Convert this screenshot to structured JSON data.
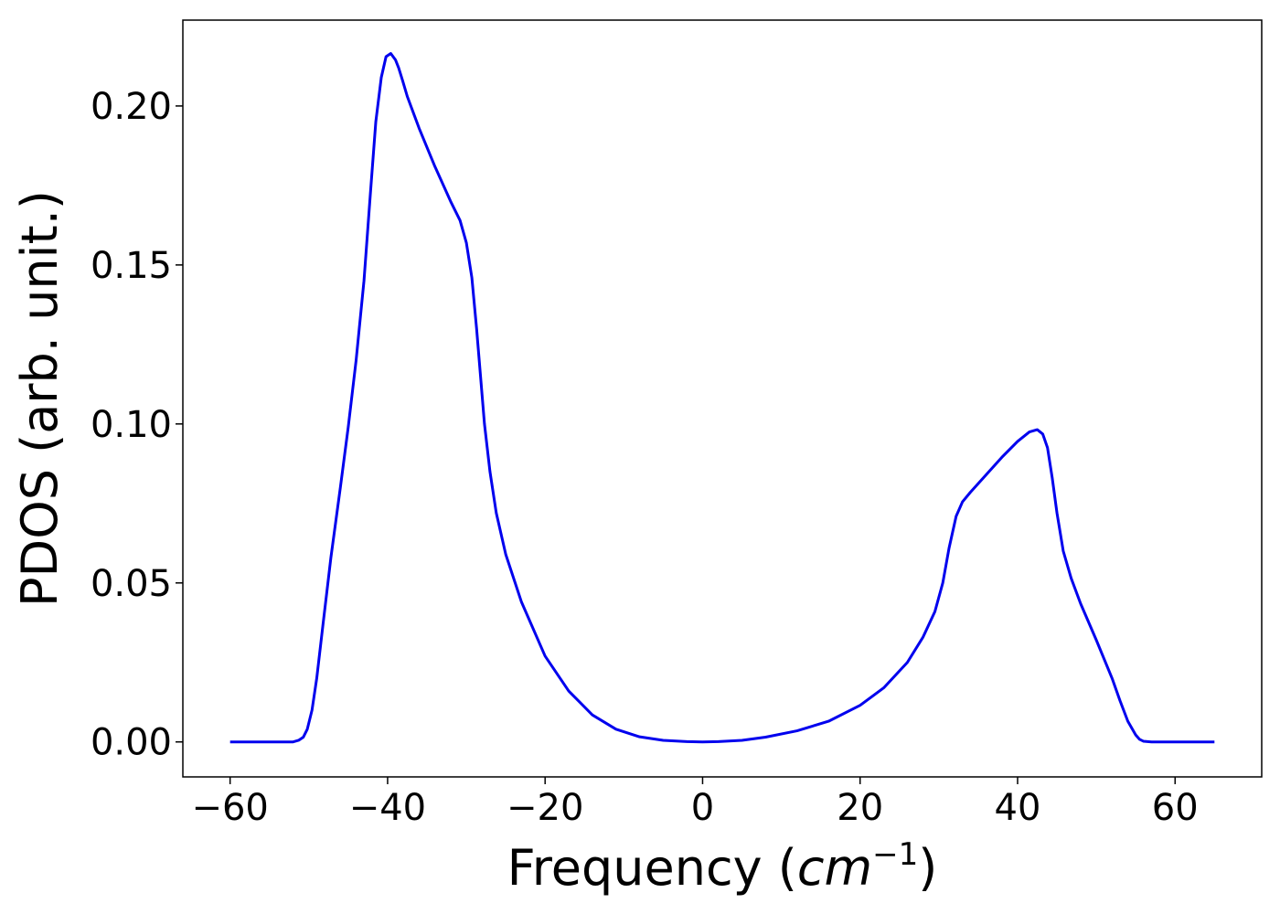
{
  "chart_data": {
    "type": "line",
    "title": "",
    "xlabel": "Frequency (",
    "xlabel_math": "cm",
    "xlabel_sup": "−1",
    "xlabel_close": ")",
    "ylabel": "PDOS (arb. unit.)",
    "xlim": [
      -66,
      71
    ],
    "ylim": [
      -0.011,
      0.227
    ],
    "grid": false,
    "line_color": "#0000ee",
    "x_ticks": [
      {
        "value": -60,
        "label": "−60"
      },
      {
        "value": -40,
        "label": "−40"
      },
      {
        "value": -20,
        "label": "−20"
      },
      {
        "value": 0,
        "label": "0"
      },
      {
        "value": 20,
        "label": "20"
      },
      {
        "value": 40,
        "label": "40"
      },
      {
        "value": 60,
        "label": "60"
      }
    ],
    "y_ticks": [
      {
        "value": 0.0,
        "label": "0.00"
      },
      {
        "value": 0.05,
        "label": "0.05"
      },
      {
        "value": 0.1,
        "label": "0.10"
      },
      {
        "value": 0.15,
        "label": "0.15"
      },
      {
        "value": 0.2,
        "label": "0.20"
      }
    ],
    "series": [
      {
        "x": [
          -60,
          -55,
          -52,
          -51.3,
          -50.7,
          -50.2,
          -49.6,
          -49,
          -48.2,
          -47.2,
          -46,
          -45,
          -44,
          -43,
          -42.2,
          -41.5,
          -40.8,
          -40.2,
          -39.6,
          -39,
          -38.6,
          -38.1,
          -37.5,
          -36,
          -34,
          -32,
          -30.8,
          -30,
          -29.3,
          -28.7,
          -28.2,
          -27.7,
          -27,
          -26.2,
          -25,
          -23,
          -20,
          -17,
          -14,
          -11,
          -8,
          -5,
          -2,
          0,
          2,
          5,
          8,
          12,
          16,
          20,
          23,
          26,
          28,
          29.5,
          30.5,
          31.3,
          32.2,
          33,
          34,
          36,
          38,
          40,
          41.5,
          42.5,
          43.2,
          43.8,
          44.4,
          45,
          45.8,
          46.8,
          48,
          50,
          52,
          53,
          54,
          55,
          55.5,
          56,
          57,
          60,
          65
        ],
        "y": [
          0,
          0,
          0,
          0.0005,
          0.0015,
          0.004,
          0.01,
          0.02,
          0.037,
          0.058,
          0.08,
          0.099,
          0.12,
          0.145,
          0.172,
          0.195,
          0.209,
          0.2155,
          0.2165,
          0.2145,
          0.212,
          0.208,
          0.203,
          0.193,
          0.181,
          0.17,
          0.164,
          0.157,
          0.146,
          0.13,
          0.115,
          0.1,
          0.085,
          0.072,
          0.059,
          0.044,
          0.027,
          0.016,
          0.0085,
          0.004,
          0.0016,
          0.0005,
          0.0001,
          0,
          0.0001,
          0.0005,
          0.0015,
          0.0035,
          0.0065,
          0.0115,
          0.017,
          0.025,
          0.033,
          0.041,
          0.05,
          0.061,
          0.071,
          0.0755,
          0.0785,
          0.084,
          0.0895,
          0.0945,
          0.0975,
          0.0982,
          0.0968,
          0.0925,
          0.083,
          0.072,
          0.06,
          0.0515,
          0.0435,
          0.032,
          0.02,
          0.013,
          0.0065,
          0.0022,
          0.0008,
          0.0002,
          0,
          0,
          0
        ]
      }
    ]
  }
}
